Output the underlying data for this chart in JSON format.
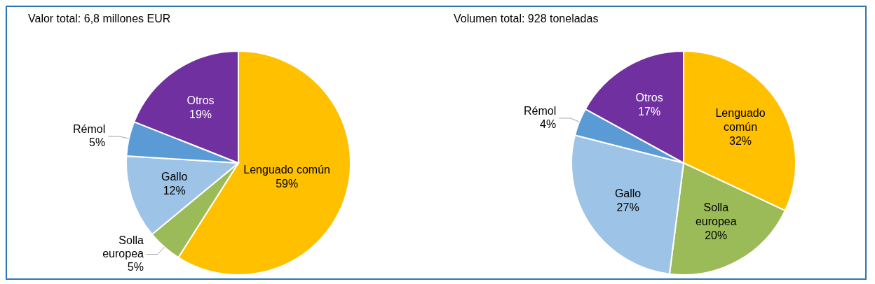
{
  "chart_data": [
    {
      "type": "pie",
      "title": "Valor total: 6,8 millones EUR",
      "categories": [
        "Lenguado común",
        "Solla europea",
        "Gallo",
        "Rémol",
        "Otros"
      ],
      "values": [
        59,
        5,
        12,
        5,
        19
      ],
      "value_labels": [
        "59%",
        "5%",
        "12%",
        "5%",
        "19%"
      ],
      "colors": [
        "#ffc000",
        "#9bbb59",
        "#9dc3e6",
        "#5b9bd5",
        "#7030a0"
      ],
      "legend": false
    },
    {
      "type": "pie",
      "title": "Volumen total: 928 toneladas",
      "categories": [
        "Lenguado común",
        "Solla europea",
        "Gallo",
        "Rémol",
        "Otros"
      ],
      "values": [
        32,
        20,
        27,
        4,
        17
      ],
      "value_labels": [
        "32%",
        "20%",
        "27%",
        "4%",
        "17%"
      ],
      "colors": [
        "#ffc000",
        "#9bbb59",
        "#9dc3e6",
        "#5b9bd5",
        "#7030a0"
      ],
      "legend": false
    }
  ]
}
